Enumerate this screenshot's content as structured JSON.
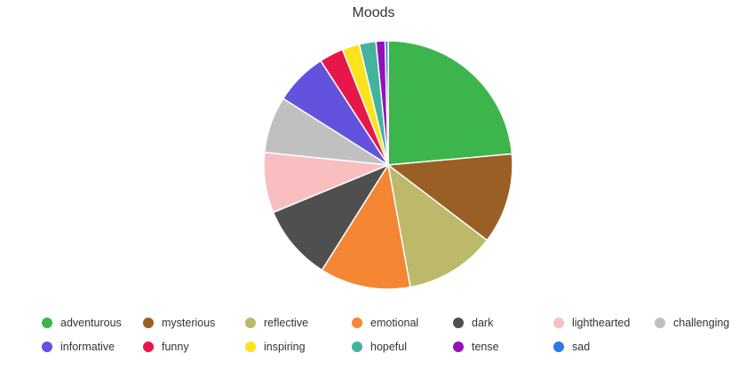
{
  "chart_data": {
    "type": "pie",
    "title": "Moods",
    "categories": [
      "adventurous",
      "mysterious",
      "reflective",
      "emotional",
      "dark",
      "lighthearted",
      "challenging",
      "informative",
      "funny",
      "inspiring",
      "hopeful",
      "tense",
      "sad"
    ],
    "values": [
      24,
      12,
      12,
      12,
      10,
      8,
      7.5,
      7,
      3.2,
      2.3,
      2.2,
      1.2,
      0.4
    ],
    "colors": [
      "#3cb54c",
      "#995f24",
      "#bcb96a",
      "#f48634",
      "#4f4f4f",
      "#f9bfc0",
      "#c0c0c0",
      "#6252de",
      "#e8174a",
      "#fde21c",
      "#44b39e",
      "#9212b4",
      "#2d7ae2"
    ],
    "legend_position": "bottom"
  }
}
